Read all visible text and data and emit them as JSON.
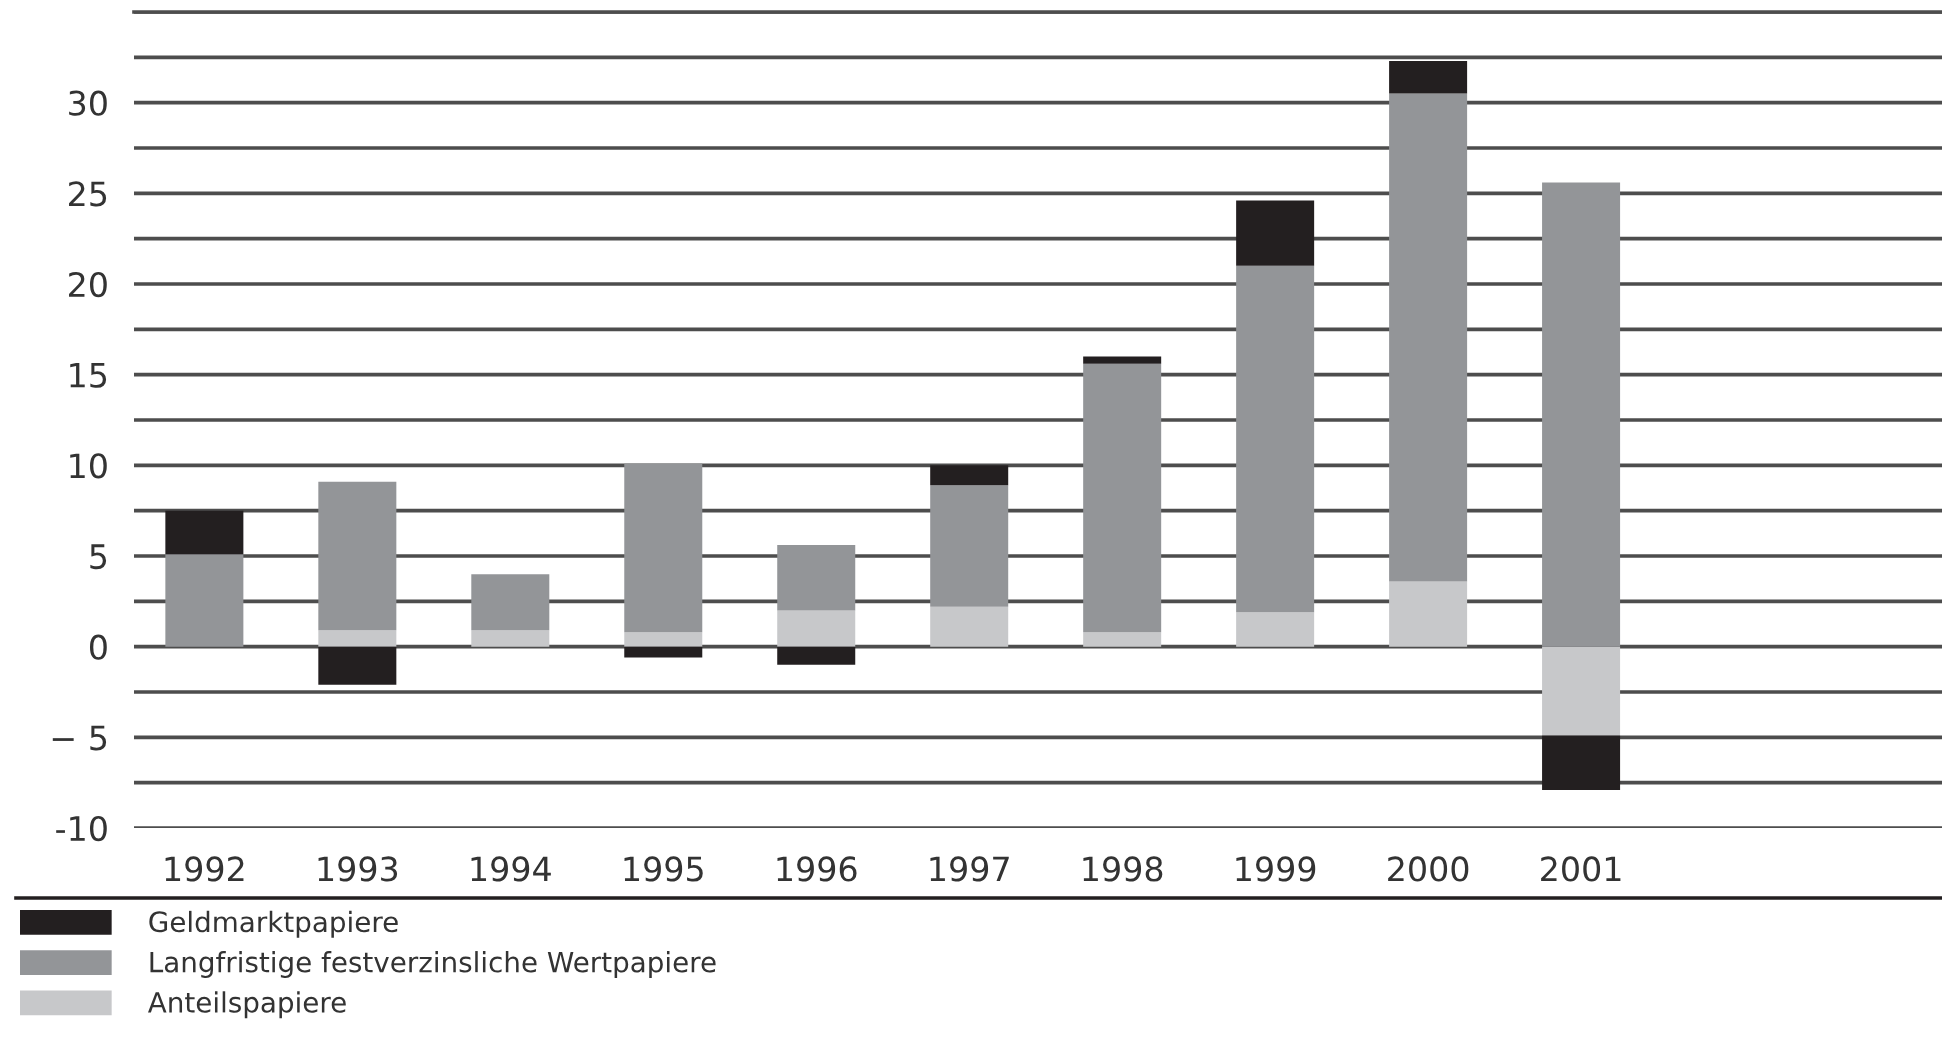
{
  "chart_data": {
    "type": "bar",
    "stacked": true,
    "categories": [
      "1992",
      "1993",
      "1994",
      "1995",
      "1996",
      "1997",
      "1998",
      "1999",
      "2000",
      "2001"
    ],
    "series": [
      {
        "name": "Anteilspapiere",
        "color": "#c7c8ca",
        "values": [
          0,
          0.9,
          0.9,
          0.8,
          2.0,
          2.2,
          0.8,
          1.9,
          3.6,
          -4.9
        ]
      },
      {
        "name": "Langfristige festverzinsliche Wertpapiere",
        "color": "#939598",
        "values": [
          5.1,
          8.2,
          3.1,
          9.3,
          3.6,
          6.7,
          14.8,
          19.1,
          26.9,
          25.6
        ]
      },
      {
        "name": "Geldmarktpapiere",
        "color": "#231f20",
        "values": [
          2.4,
          -2.1,
          0,
          -0.6,
          -1.0,
          1.1,
          0.4,
          3.6,
          1.8,
          -3.0
        ]
      }
    ],
    "ylim": [
      -10,
      35
    ],
    "yticks": [
      -10,
      {
        "value": -7.5,
        "label": null
      },
      {
        "value": -5,
        "label": "− 5"
      },
      {
        "value": -2.5,
        "label": null
      },
      0,
      {
        "value": 2.5,
        "label": null
      },
      5,
      {
        "value": 7.5,
        "label": null
      },
      10,
      {
        "value": 12.5,
        "label": null
      },
      15,
      {
        "value": 17.5,
        "label": null
      },
      20,
      {
        "value": 22.5,
        "label": null
      },
      25,
      {
        "value": 27.5,
        "label": null
      },
      30,
      {
        "value": 32.5,
        "label": null
      },
      {
        "value": 35,
        "label": null
      }
    ],
    "grid": "y",
    "legend": "bottom"
  }
}
